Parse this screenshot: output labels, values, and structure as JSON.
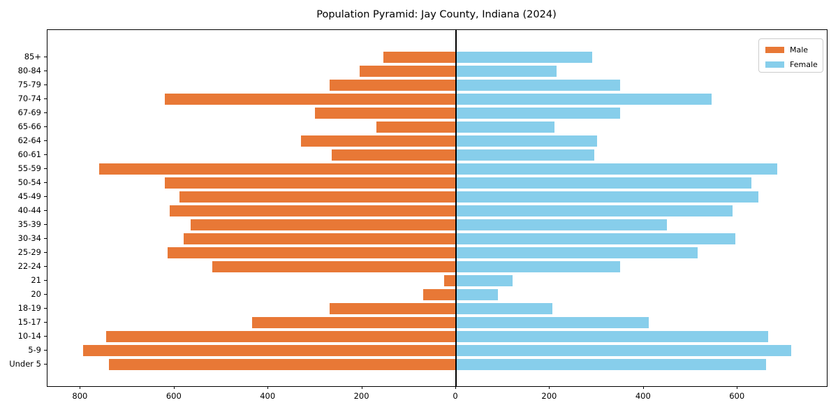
{
  "chart_data": {
    "type": "bar",
    "subtype": "population-pyramid",
    "orientation": "horizontal",
    "title": "Population Pyramid: Jay County, Indiana (2024)",
    "categories": [
      "85+",
      "80-84",
      "75-79",
      "70-74",
      "67-69",
      "65-66",
      "62-64",
      "60-61",
      "55-59",
      "50-54",
      "45-49",
      "40-44",
      "35-39",
      "30-34",
      "25-29",
      "22-24",
      "21",
      "20",
      "18-19",
      "15-17",
      "10-14",
      "5-9",
      "Under 5"
    ],
    "series": [
      {
        "name": "Male",
        "side": "left",
        "color": "#e87836",
        "values": [
          155,
          205,
          270,
          620,
          300,
          170,
          330,
          265,
          760,
          620,
          590,
          610,
          565,
          580,
          615,
          520,
          25,
          70,
          270,
          435,
          745,
          795,
          740
        ]
      },
      {
        "name": "Female",
        "side": "right",
        "color": "#87ceeb",
        "values": [
          290,
          215,
          350,
          545,
          350,
          210,
          300,
          295,
          685,
          630,
          645,
          590,
          450,
          595,
          515,
          350,
          120,
          90,
          205,
          410,
          665,
          715,
          660
        ]
      }
    ],
    "x_tick_values": [
      -800,
      -600,
      -400,
      -200,
      0,
      200,
      400,
      600
    ],
    "x_tick_labels": [
      "800",
      "600",
      "400",
      "200",
      "0",
      "200",
      "400",
      "600"
    ],
    "xlim": [
      -870,
      790
    ],
    "xlabel": "",
    "ylabel": "",
    "grid": false,
    "zero_line": true,
    "legend": {
      "position": "upper-right",
      "entries": [
        "Male",
        "Female"
      ]
    }
  }
}
